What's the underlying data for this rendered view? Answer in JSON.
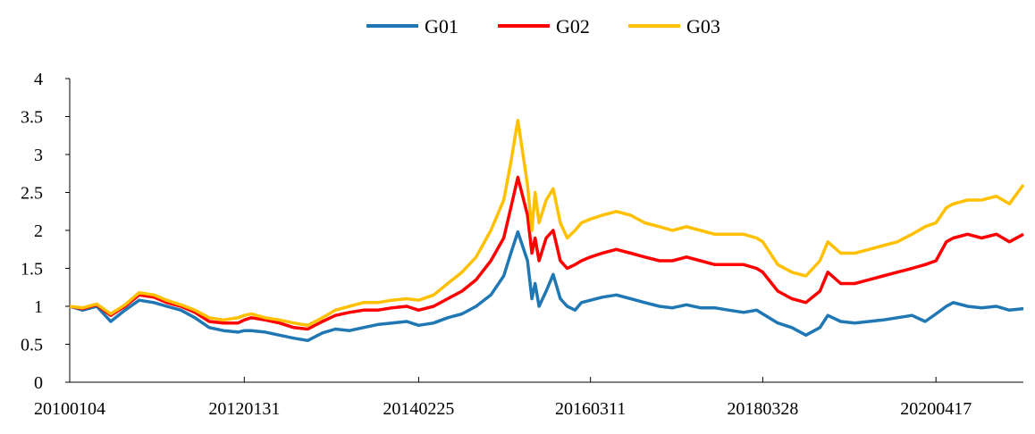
{
  "chart_data": {
    "type": "line",
    "title": "",
    "xlabel": "",
    "ylabel": "",
    "ylim": [
      0,
      4
    ],
    "y_ticks": [
      "0",
      "0.5",
      "1",
      "1.5",
      "2",
      "2.5",
      "3",
      "3.5",
      "4"
    ],
    "x_ticks": [
      "20100104",
      "20120131",
      "20140225",
      "20160311",
      "20180328",
      "20200417"
    ],
    "grid": false,
    "legend_position": "top-center",
    "x": [
      "20100104",
      "20100301",
      "20100501",
      "20100701",
      "20100901",
      "20101101",
      "20110104",
      "20110301",
      "20110501",
      "20110701",
      "20110901",
      "20111101",
      "20120104",
      "20120131",
      "20120301",
      "20120501",
      "20120701",
      "20120901",
      "20121101",
      "20130104",
      "20130301",
      "20130501",
      "20130701",
      "20130901",
      "20131101",
      "20140104",
      "20140225",
      "20140501",
      "20140701",
      "20140901",
      "20141101",
      "20150104",
      "20150301",
      "20150401",
      "20150501",
      "20150612",
      "20150701",
      "20150715",
      "20150801",
      "20150901",
      "20151001",
      "20151101",
      "20151201",
      "20160104",
      "20160201",
      "20160311",
      "20160501",
      "20160701",
      "20160901",
      "20161101",
      "20170104",
      "20170301",
      "20170501",
      "20170701",
      "20170901",
      "20171101",
      "20180104",
      "20180301",
      "20180328",
      "20180601",
      "20180801",
      "20181001",
      "20181201",
      "20190104",
      "20190301",
      "20190501",
      "20190701",
      "20190901",
      "20191101",
      "20200104",
      "20200301",
      "20200417",
      "20200601",
      "20200701",
      "20200901",
      "20201101",
      "20210104",
      "20210301",
      "20210501"
    ],
    "series": [
      {
        "name": "G01",
        "color": "#1f77b4",
        "values": [
          1.0,
          0.95,
          1.0,
          0.8,
          0.95,
          1.08,
          1.05,
          1.0,
          0.95,
          0.85,
          0.72,
          0.68,
          0.66,
          0.68,
          0.68,
          0.66,
          0.62,
          0.58,
          0.55,
          0.65,
          0.7,
          0.68,
          0.72,
          0.76,
          0.78,
          0.8,
          0.75,
          0.78,
          0.85,
          0.9,
          1.0,
          1.15,
          1.4,
          1.7,
          1.98,
          1.6,
          1.1,
          1.3,
          1.0,
          1.2,
          1.42,
          1.1,
          1.0,
          0.95,
          1.05,
          1.08,
          1.12,
          1.15,
          1.1,
          1.05,
          1.0,
          0.98,
          1.02,
          0.98,
          0.98,
          0.95,
          0.92,
          0.95,
          0.9,
          0.78,
          0.72,
          0.62,
          0.72,
          0.88,
          0.8,
          0.78,
          0.8,
          0.82,
          0.85,
          0.88,
          0.8,
          0.9,
          1.0,
          1.05,
          1.0,
          0.98,
          1.0,
          0.95,
          0.97
        ]
      },
      {
        "name": "G02",
        "color": "#ff0000",
        "values": [
          1.0,
          0.97,
          1.02,
          0.88,
          1.0,
          1.15,
          1.12,
          1.05,
          1.0,
          0.92,
          0.8,
          0.78,
          0.78,
          0.82,
          0.85,
          0.82,
          0.78,
          0.72,
          0.7,
          0.8,
          0.88,
          0.92,
          0.95,
          0.95,
          0.98,
          1.0,
          0.95,
          1.0,
          1.1,
          1.2,
          1.35,
          1.6,
          1.9,
          2.3,
          2.7,
          2.2,
          1.7,
          1.9,
          1.6,
          1.9,
          2.0,
          1.6,
          1.5,
          1.55,
          1.6,
          1.65,
          1.7,
          1.75,
          1.7,
          1.65,
          1.6,
          1.6,
          1.65,
          1.6,
          1.55,
          1.55,
          1.55,
          1.5,
          1.45,
          1.2,
          1.1,
          1.05,
          1.2,
          1.45,
          1.3,
          1.3,
          1.35,
          1.4,
          1.45,
          1.5,
          1.55,
          1.6,
          1.85,
          1.9,
          1.95,
          1.9,
          1.95,
          1.85,
          1.95
        ]
      },
      {
        "name": "G03",
        "color": "#ffc000",
        "values": [
          1.0,
          0.98,
          1.03,
          0.9,
          1.02,
          1.18,
          1.15,
          1.08,
          1.02,
          0.95,
          0.85,
          0.82,
          0.85,
          0.88,
          0.9,
          0.85,
          0.82,
          0.78,
          0.75,
          0.85,
          0.95,
          1.0,
          1.05,
          1.05,
          1.08,
          1.1,
          1.08,
          1.15,
          1.3,
          1.45,
          1.65,
          2.0,
          2.4,
          2.9,
          3.45,
          2.6,
          2.0,
          2.5,
          2.1,
          2.4,
          2.55,
          2.1,
          1.9,
          2.0,
          2.1,
          2.15,
          2.2,
          2.25,
          2.2,
          2.1,
          2.05,
          2.0,
          2.05,
          2.0,
          1.95,
          1.95,
          1.95,
          1.9,
          1.85,
          1.55,
          1.45,
          1.4,
          1.6,
          1.85,
          1.7,
          1.7,
          1.75,
          1.8,
          1.85,
          1.95,
          2.05,
          2.1,
          2.3,
          2.35,
          2.4,
          2.4,
          2.45,
          2.35,
          2.6
        ]
      }
    ]
  },
  "legend": {
    "items": [
      {
        "label": "G01",
        "color": "#1f77b4"
      },
      {
        "label": "G02",
        "color": "#ff0000"
      },
      {
        "label": "G03",
        "color": "#ffc000"
      }
    ]
  }
}
